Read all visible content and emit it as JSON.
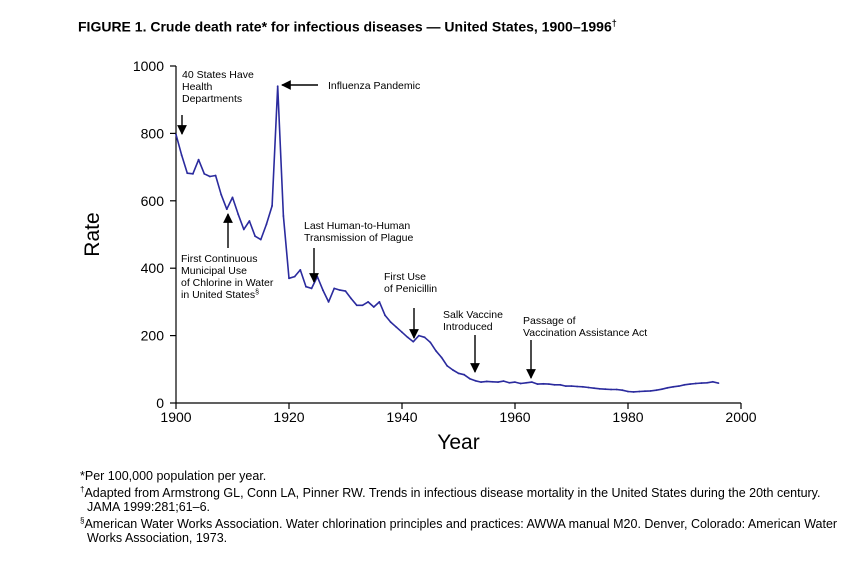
{
  "title": {
    "text": "FIGURE 1. Crude death rate* for infectious diseases — United States, 1900–1996",
    "marker": "†"
  },
  "chart_data": {
    "type": "line",
    "title": "FIGURE 1. Crude death rate* for infectious diseases — United States, 1900–1996†",
    "xlabel": "Year",
    "ylabel": "Rate",
    "xlim": [
      1900,
      2000
    ],
    "ylim": [
      0,
      1000
    ],
    "xticks": [
      1900,
      1920,
      1940,
      1960,
      1980,
      2000
    ],
    "yticks": [
      0,
      200,
      400,
      600,
      800,
      1000
    ],
    "grid": false,
    "series": [
      {
        "name": "Crude death rate",
        "color": "#2b2b9e",
        "x": [
          1900,
          1901,
          1902,
          1903,
          1904,
          1905,
          1906,
          1907,
          1908,
          1909,
          1910,
          1911,
          1912,
          1913,
          1914,
          1915,
          1916,
          1917,
          1918,
          1919,
          1920,
          1921,
          1922,
          1923,
          1924,
          1925,
          1926,
          1927,
          1928,
          1929,
          1930,
          1931,
          1932,
          1933,
          1934,
          1935,
          1936,
          1937,
          1938,
          1939,
          1940,
          1941,
          1942,
          1943,
          1944,
          1945,
          1946,
          1947,
          1948,
          1949,
          1950,
          1951,
          1952,
          1953,
          1954,
          1955,
          1956,
          1957,
          1958,
          1959,
          1960,
          1961,
          1962,
          1963,
          1964,
          1965,
          1966,
          1967,
          1968,
          1969,
          1970,
          1971,
          1972,
          1973,
          1974,
          1975,
          1976,
          1977,
          1978,
          1979,
          1980,
          1981,
          1982,
          1983,
          1984,
          1985,
          1986,
          1987,
          1988,
          1989,
          1990,
          1991,
          1992,
          1993,
          1994,
          1995,
          1996
        ],
        "y": [
          797,
          735,
          682,
          680,
          722,
          680,
          672,
          675,
          618,
          575,
          610,
          560,
          515,
          540,
          495,
          485,
          530,
          585,
          940,
          555,
          370,
          375,
          395,
          345,
          340,
          375,
          335,
          300,
          340,
          335,
          332,
          310,
          290,
          290,
          300,
          285,
          300,
          260,
          240,
          225,
          210,
          195,
          182,
          200,
          195,
          180,
          155,
          135,
          110,
          98,
          88,
          84,
          72,
          66,
          62,
          64,
          63,
          62,
          65,
          60,
          62,
          58,
          60,
          62,
          56,
          57,
          56,
          54,
          54,
          50,
          50,
          49,
          48,
          46,
          44,
          42,
          41,
          40,
          40,
          38,
          34,
          33,
          34,
          35,
          36,
          38,
          41,
          45,
          48,
          50,
          54,
          56,
          58,
          59,
          60,
          63,
          59
        ]
      }
    ],
    "annotations": [
      {
        "lines": [
          "40 States Have",
          "Health",
          "Departments"
        ],
        "year": 1900
      },
      {
        "lines": [
          "Influenza Pandemic"
        ],
        "year": 1918
      },
      {
        "lines": [
          "First Continuous",
          "Municipal Use",
          "of Chlorine in Water",
          "in United States"
        ],
        "marker": "§",
        "year": 1908
      },
      {
        "lines": [
          "Last Human-to-Human",
          "Transmission of Plague"
        ],
        "year": 1924
      },
      {
        "lines": [
          "First Use",
          "of Penicillin"
        ],
        "year": 1942
      },
      {
        "lines": [
          "Salk Vaccine",
          "Introduced"
        ],
        "year": 1955
      },
      {
        "lines": [
          "Passage of",
          "Vaccination Assistance Act"
        ],
        "year": 1962
      }
    ]
  },
  "footnotes": [
    {
      "marker": "*",
      "text": "Per 100,000 population per year."
    },
    {
      "marker": "†",
      "text": "Adapted from Armstrong GL, Conn LA, Pinner RW. Trends in infectious disease mortality in the United States during the 20th century. JAMA 1999:281;61–6."
    },
    {
      "marker": "§",
      "text": "American Water Works Association. Water chlorination principles and practices: AWWA manual M20. Denver, Colorado: American Water Works Association, 1973."
    }
  ]
}
